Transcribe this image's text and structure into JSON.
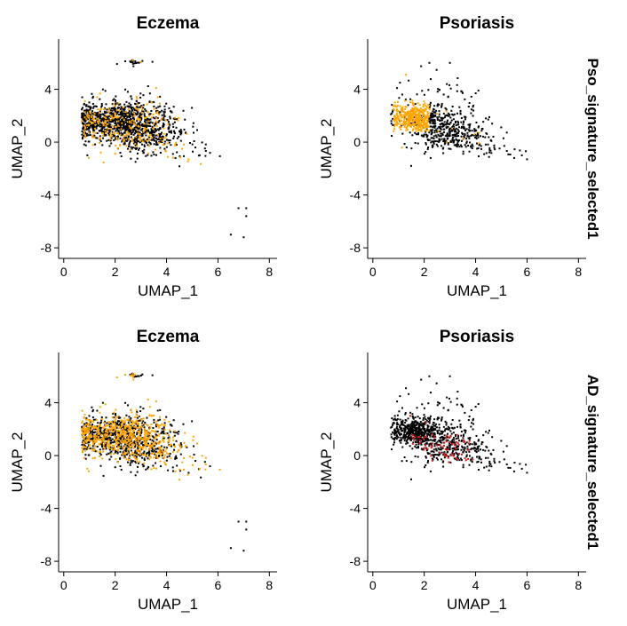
{
  "chart_data": [
    {
      "type": "scatter",
      "title": "Eczema",
      "row_label": "Pso_signature_selected1",
      "xlabel": "UMAP_1",
      "ylabel": "UMAP_2",
      "xlim": [
        -0.2,
        8.3
      ],
      "ylim": [
        -8.8,
        7.8
      ],
      "xticks": [
        "0",
        "2",
        "4",
        "6",
        "8"
      ],
      "yticks": [
        "4",
        "0",
        "-4",
        "-8"
      ],
      "grid": false,
      "legend": "none",
      "cluster": "eczema",
      "highlight": {
        "color": "#FFA500",
        "fraction": 0.18
      }
    },
    {
      "type": "scatter",
      "title": "Psoriasis",
      "row_label": "Pso_signature_selected1",
      "xlabel": "UMAP_1",
      "ylabel": "UMAP_2",
      "xlim": [
        -0.2,
        8.3
      ],
      "ylim": [
        -8.8,
        7.8
      ],
      "xticks": [
        "0",
        "2",
        "4",
        "6",
        "8"
      ],
      "yticks": [
        "4",
        "0",
        "-4",
        "-8"
      ],
      "grid": false,
      "legend": "none",
      "cluster": "psoriasis",
      "highlight": {
        "color": "#FFA500",
        "fraction": 0.3,
        "region": [
          0.8,
          2.2,
          0.8,
          3.2
        ]
      }
    },
    {
      "type": "scatter",
      "title": "Eczema",
      "row_label": "AD_signature_selected1",
      "xlabel": "UMAP_1",
      "ylabel": "UMAP_2",
      "xlim": [
        -0.2,
        8.3
      ],
      "ylim": [
        -8.8,
        7.8
      ],
      "xticks": [
        "0",
        "2",
        "4",
        "6",
        "8"
      ],
      "yticks": [
        "4",
        "0",
        "-4",
        "-8"
      ],
      "grid": false,
      "legend": "none",
      "cluster": "eczema",
      "highlight": {
        "color": "#FFA500",
        "fraction": 0.45
      }
    },
    {
      "type": "scatter",
      "title": "Psoriasis",
      "row_label": "AD_signature_selected1",
      "xlabel": "UMAP_1",
      "ylabel": "UMAP_2",
      "xlim": [
        -0.2,
        8.3
      ],
      "ylim": [
        -8.8,
        7.8
      ],
      "xticks": [
        "0",
        "2",
        "4",
        "6",
        "8"
      ],
      "yticks": [
        "4",
        "0",
        "-4",
        "-8"
      ],
      "grid": false,
      "legend": "none",
      "cluster": "psoriasis",
      "highlight": {
        "color": "#D81B1B",
        "fraction": 0.07,
        "region": [
          1.5,
          3.8,
          -0.5,
          1.6
        ]
      }
    }
  ],
  "clusters": {
    "eczema": [
      {
        "cx": 2.2,
        "cy": 1.5,
        "sx": 0.9,
        "sy": 0.9,
        "n": 900
      },
      {
        "cx": 3.3,
        "cy": 0.8,
        "sx": 0.7,
        "sy": 0.8,
        "n": 300
      },
      {
        "cx": 1.2,
        "cy": 1.8,
        "sx": 0.35,
        "sy": 0.4,
        "n": 150
      },
      {
        "cx": 2.7,
        "cy": 6.0,
        "sx": 0.25,
        "sy": 0.12,
        "n": 20
      },
      {
        "cx": 4.6,
        "cy": -0.5,
        "sx": 0.6,
        "sy": 0.7,
        "n": 40
      }
    ],
    "eczema_outliers": [
      [
        6.8,
        -5.0
      ],
      [
        7.1,
        -5.0
      ],
      [
        6.5,
        -7.0
      ],
      [
        7.0,
        -7.2
      ],
      [
        7.1,
        -5.6
      ]
    ],
    "psoriasis": [
      {
        "cx": 1.6,
        "cy": 1.9,
        "sx": 0.5,
        "sy": 0.55,
        "n": 420
      },
      {
        "cx": 2.6,
        "cy": 1.0,
        "sx": 0.7,
        "sy": 0.8,
        "n": 300
      },
      {
        "cx": 3.4,
        "cy": 0.5,
        "sx": 0.5,
        "sy": 0.6,
        "n": 120
      },
      {
        "cx": 4.6,
        "cy": -0.3,
        "sx": 0.6,
        "sy": 0.6,
        "n": 40
      },
      {
        "cx": 2.5,
        "cy": 3.5,
        "sx": 0.8,
        "sy": 1.1,
        "n": 50
      }
    ],
    "psoriasis_outliers": [
      [
        5.5,
        -1.2
      ],
      [
        5.8,
        -1.0
      ],
      [
        6.0,
        -1.3
      ],
      [
        2.2,
        6.0
      ],
      [
        3.0,
        6.0
      ],
      [
        4.4,
        1.8
      ]
    ]
  }
}
